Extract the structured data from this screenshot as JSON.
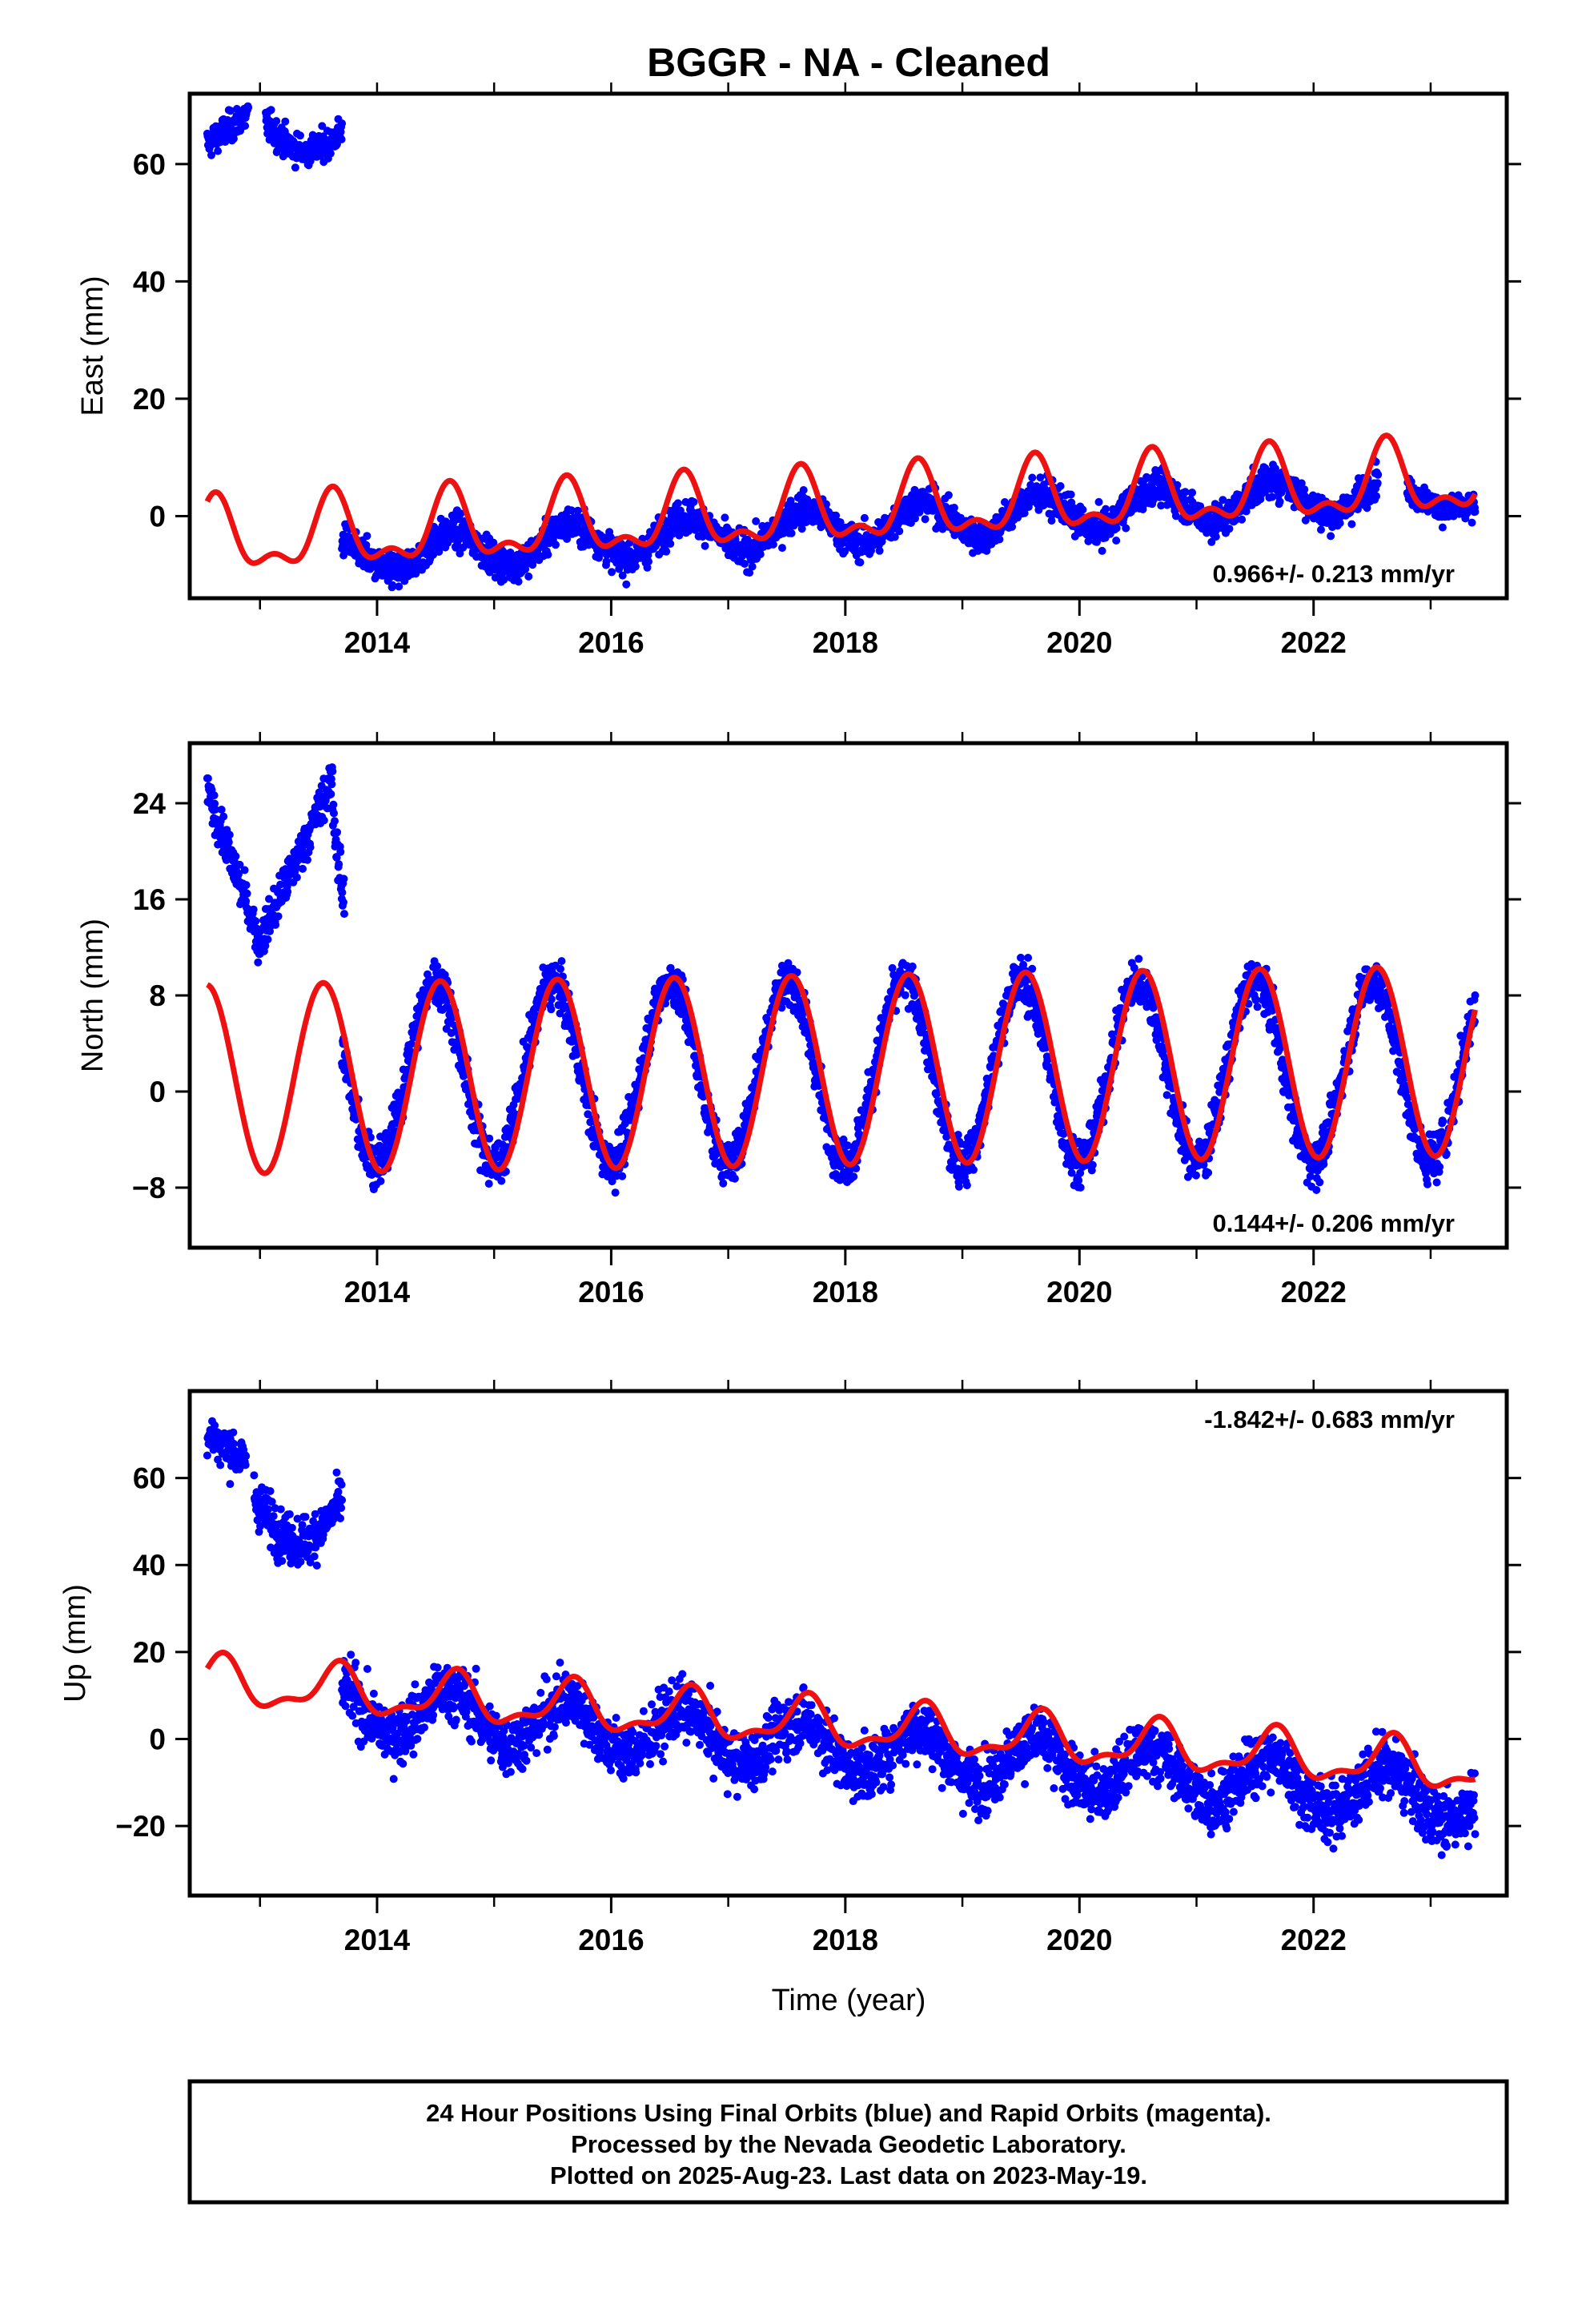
{
  "figure": {
    "title": "BGGR  - NA - Cleaned",
    "xlabel": "Time (year)",
    "footer": [
      "24 Hour Positions Using Final Orbits (blue) and Rapid Orbits (magenta).",
      "Processed by the Nevada Geodetic Laboratory.",
      "Plotted on 2025-Aug-23. Last data on 2023-May-19."
    ],
    "colors": {
      "observations": "#0000ff",
      "model": "#ee1111",
      "frame": "#000000"
    }
  },
  "chart_data": [
    {
      "type": "scatter",
      "ylabel": "East (mm)",
      "rate_label": "0.966+/- 0.213 mm/yr",
      "rate_position": "bottom-right",
      "xlim": [
        2012.4,
        2023.65
      ],
      "ylim": [
        -14,
        72
      ],
      "xticks": [
        2014,
        2016,
        2018,
        2020,
        2022
      ],
      "yticks": [
        0,
        20,
        40,
        60
      ],
      "series": [
        {
          "kind": "observations",
          "segments": [
            {
              "x": [
                2012.55,
                2012.9
              ],
              "mean_start": 63.5,
              "mean_end": 68.5,
              "annual_amp": 0,
              "scatter": 1.8
            },
            {
              "x": [
                2013.05,
                2013.7
              ],
              "mean_start": 67,
              "mean_end": 65.5,
              "annual_amp": 0,
              "dip": -4,
              "scatter": 1.8
            },
            {
              "x": [
                2013.7,
                2022.55
              ],
              "mean_start": -7,
              "mean_end": 4,
              "annual_amp": 3.2,
              "phase": 0.65,
              "scatter": 2.0
            },
            {
              "x": [
                2022.8,
                2023.38
              ],
              "mean_start": 3.5,
              "mean_end": 2,
              "annual_amp": 1.5,
              "phase": 0.65,
              "scatter": 1.6
            }
          ]
        },
        {
          "kind": "model",
          "start": 2012.55,
          "end": 2023.38,
          "offset": 1.0,
          "rate": 0.966,
          "annual_amp": 5.5,
          "annual_peak": 0.62,
          "semiannual_amp": 2.8,
          "semiannual_peak": 0.62
        }
      ]
    },
    {
      "type": "scatter",
      "ylabel": "North (mm)",
      "rate_label": "0.144+/- 0.206 mm/yr",
      "rate_position": "bottom-right",
      "xlim": [
        2012.4,
        2023.65
      ],
      "ylim": [
        -13,
        29
      ],
      "xticks": [
        2014,
        2016,
        2018,
        2020,
        2022
      ],
      "yticks": [
        -8,
        0,
        8,
        16,
        24
      ],
      "series": [
        {
          "kind": "observations",
          "segments": [
            {
              "x": [
                2012.55,
                2012.98
              ],
              "mean_start": 25,
              "mean_end": 13,
              "annual_amp": 0,
              "scatter": 1.2
            },
            {
              "x": [
                2012.98,
                2013.62
              ],
              "mean_start": 12,
              "mean_end": 26,
              "annual_amp": 0,
              "scatter": 1.2
            },
            {
              "x": [
                2013.62,
                2013.72
              ],
              "mean_start": 24,
              "mean_end": 15,
              "annual_amp": 0,
              "scatter": 2.0
            },
            {
              "x": [
                2013.7,
                2023.38
              ],
              "mean_start": 1.5,
              "mean_end": 1.8,
              "annual_amp": 7.5,
              "phase": 0.5,
              "scatter": 1.4
            }
          ]
        },
        {
          "kind": "model",
          "start": 2012.55,
          "end": 2023.38,
          "offset": 1.8,
          "rate": 0.144,
          "annual_amp": 7.9,
          "annual_peak": 0.54,
          "semiannual_amp": 0,
          "semiannual_peak": 0
        }
      ]
    },
    {
      "type": "scatter",
      "ylabel": "Up (mm)",
      "rate_label": "-1.842+/- 0.683 mm/yr",
      "rate_position": "top-right",
      "xlim": [
        2012.4,
        2023.65
      ],
      "ylim": [
        -36,
        80
      ],
      "xticks": [
        2014,
        2016,
        2018,
        2020,
        2022
      ],
      "yticks": [
        -20,
        0,
        20,
        40,
        60
      ],
      "series": [
        {
          "kind": "observations",
          "segments": [
            {
              "x": [
                2012.55,
                2012.88
              ],
              "mean_start": 70,
              "mean_end": 64,
              "annual_amp": 0,
              "scatter": 3.5
            },
            {
              "x": [
                2012.95,
                2013.7
              ],
              "mean_start": 56,
              "mean_end": 55,
              "annual_amp": 0,
              "dip": -10,
              "scatter": 4.0
            },
            {
              "x": [
                2013.7,
                2023.38
              ],
              "mean_start": 7.5,
              "mean_end": -14,
              "annual_amp": 5.5,
              "phase": 0.62,
              "scatter": 4.8
            }
          ]
        },
        {
          "kind": "model",
          "start": 2012.55,
          "end": 2023.38,
          "offset": 3.0,
          "rate": -1.842,
          "annual_amp": 5.0,
          "annual_peak": 0.66,
          "semiannual_amp": 2.2,
          "semiannual_peak": 0.2
        }
      ]
    }
  ]
}
